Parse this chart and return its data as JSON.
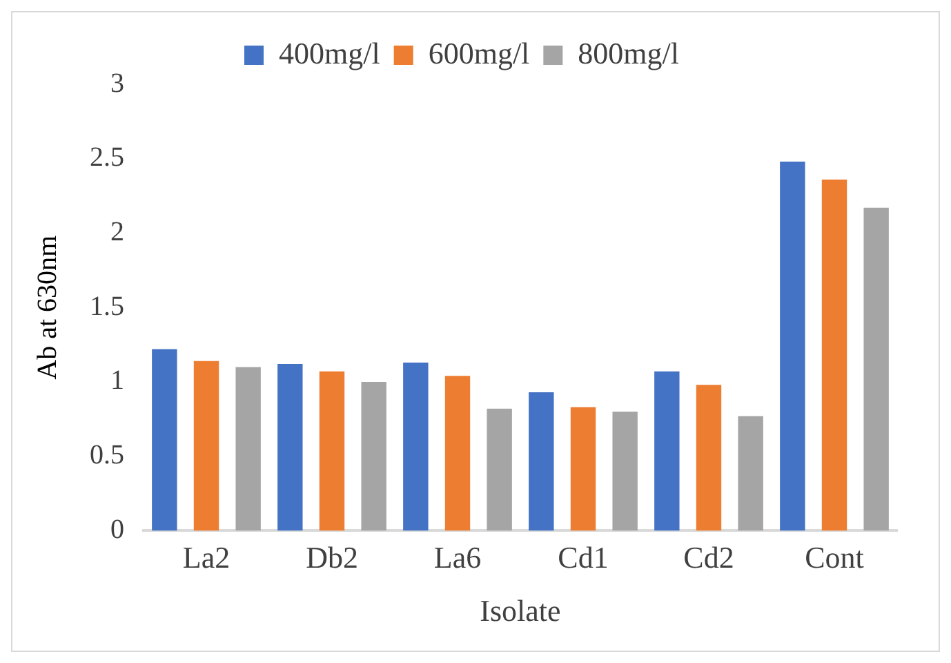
{
  "chart_data": {
    "type": "bar",
    "xlabel": "Isolate",
    "ylabel": "Ab at 630nm",
    "categories": [
      "La2",
      "Db2",
      "La6",
      "Cd1",
      "Cd2",
      "Cont"
    ],
    "series": [
      {
        "name": "400mg/l",
        "color": "#4472c4",
        "values": [
          1.22,
          1.12,
          1.13,
          0.93,
          1.07,
          2.48
        ]
      },
      {
        "name": "600mg/l",
        "color": "#ed7d31",
        "values": [
          1.14,
          1.07,
          1.04,
          0.83,
          0.98,
          2.36
        ]
      },
      {
        "name": "800mg/l",
        "color": "#a5a5a5",
        "values": [
          1.1,
          1.0,
          0.82,
          0.8,
          0.77,
          2.17
        ]
      }
    ],
    "ylim": [
      0,
      3
    ],
    "yticks": [
      0,
      0.5,
      1,
      1.5,
      2,
      2.5,
      3
    ],
    "grid": false,
    "legend": "top"
  }
}
